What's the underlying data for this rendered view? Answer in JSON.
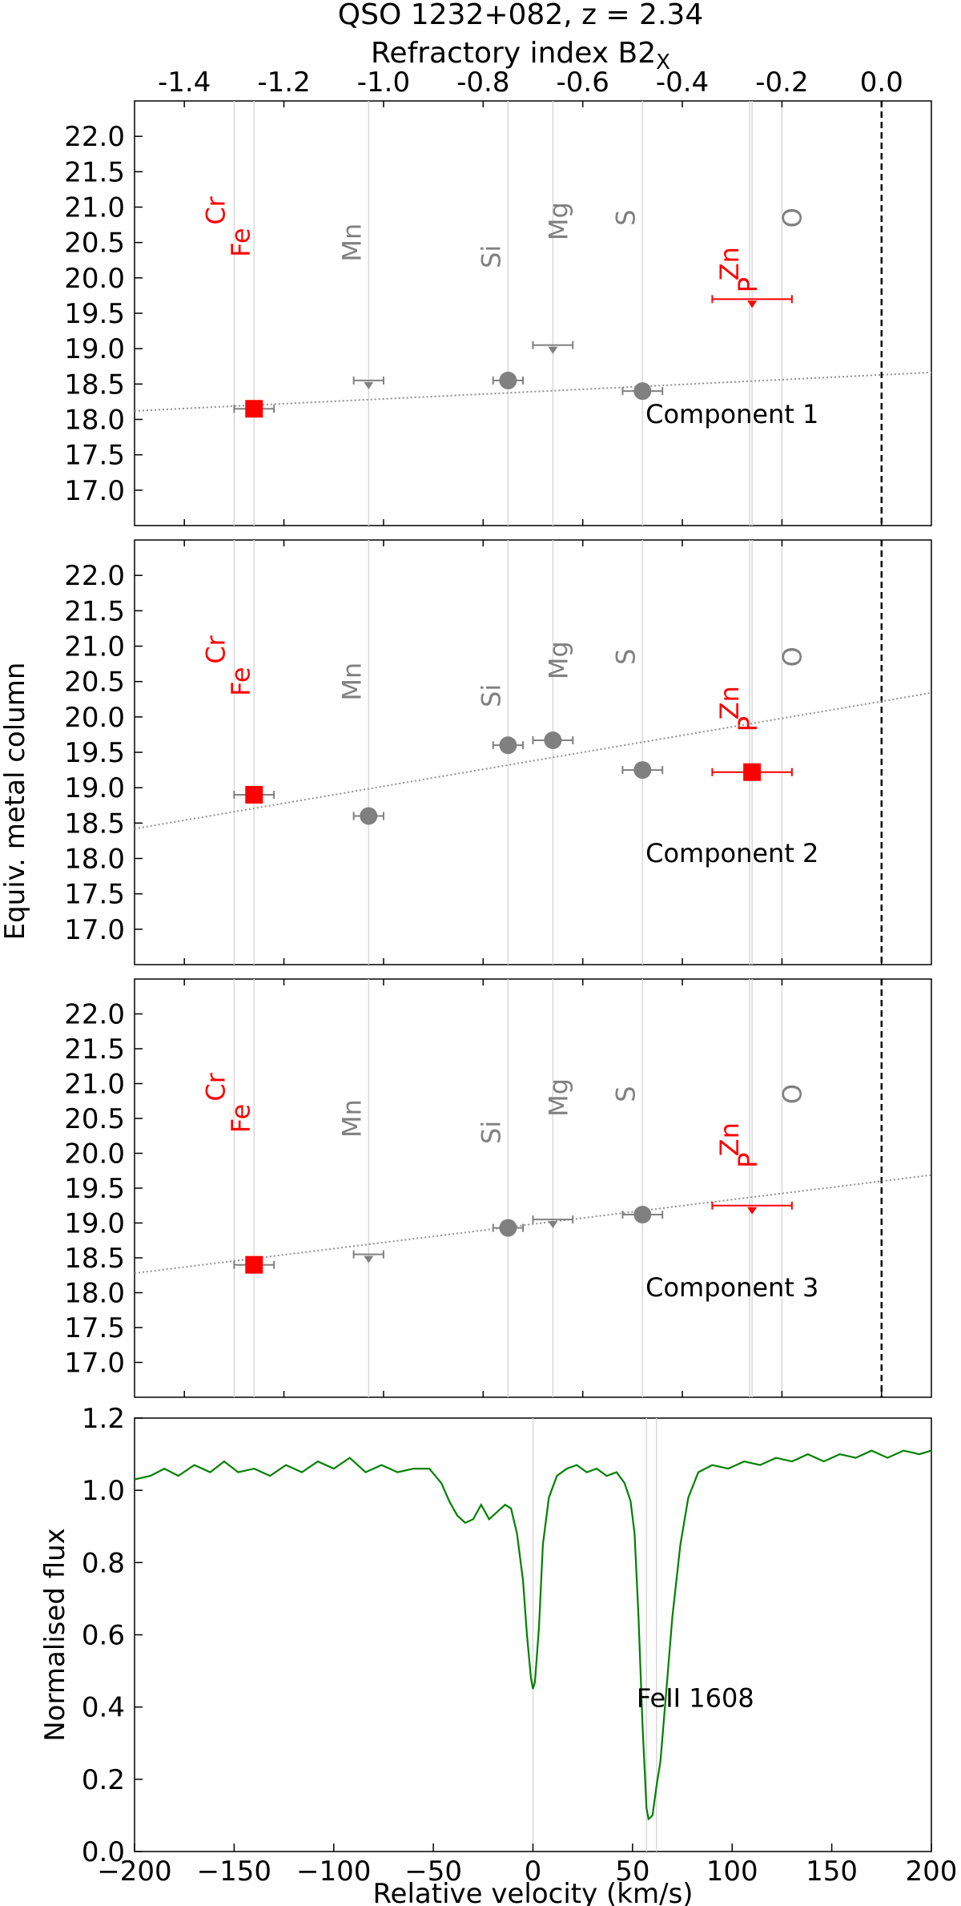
{
  "figure": {
    "title": "QSO 1232+082, z = 2.34",
    "top_axis_label": "Refractory index B2",
    "top_axis_label_sub": "X",
    "shared_ylabel": "Equiv. metal column"
  },
  "colors": {
    "refractory": "#ff0000",
    "volatile": "#808080",
    "spectrum": "#008000",
    "vline": "#d9d9d9",
    "zero_line": "#000000",
    "fit_line": "#909090"
  },
  "chart_data": [
    {
      "type": "scatter",
      "panel": "Component 1",
      "label": "Component 1",
      "xlim": [
        -1.5,
        0.1
      ],
      "ylim": [
        16.5,
        22.5
      ],
      "xticks": [
        "-1.4",
        "-1.2",
        "-1.0",
        "-0.8",
        "-0.6",
        "-0.4",
        "-0.2",
        "0.0"
      ],
      "yticks": [
        "17.0",
        "17.5",
        "18.0",
        "18.5",
        "19.0",
        "19.5",
        "20.0",
        "20.5",
        "21.0",
        "21.5",
        "22.0"
      ],
      "elements": [
        {
          "name": "Cr",
          "x": -1.3,
          "color": "red"
        },
        {
          "name": "Fe",
          "x": -1.26,
          "color": "red"
        },
        {
          "name": "Mn",
          "x": -1.03,
          "color": "gray"
        },
        {
          "name": "Si",
          "x": -0.75,
          "color": "gray"
        },
        {
          "name": "Mg",
          "x": -0.66,
          "color": "gray"
        },
        {
          "name": "S",
          "x": -0.48,
          "color": "gray"
        },
        {
          "name": "Zn",
          "x": -0.265,
          "color": "red"
        },
        {
          "name": "P",
          "x": -0.26,
          "color": "red"
        },
        {
          "name": "O",
          "x": -0.2,
          "color": "gray"
        }
      ],
      "points": [
        {
          "element": "Fe",
          "x": -1.26,
          "y": 18.15,
          "xerr": 0.04,
          "kind": "measured",
          "marker": "square"
        },
        {
          "element": "Mn",
          "x": -1.03,
          "y": 18.55,
          "xerr": 0.03,
          "kind": "upper_limit",
          "marker": "triangle"
        },
        {
          "element": "Si",
          "x": -0.75,
          "y": 18.55,
          "xerr": 0.03,
          "kind": "measured",
          "marker": "circle"
        },
        {
          "element": "Mg",
          "x": -0.66,
          "y": 19.05,
          "xerr": 0.04,
          "kind": "upper_limit",
          "marker": "triangle"
        },
        {
          "element": "S",
          "x": -0.48,
          "y": 18.4,
          "xerr": 0.04,
          "kind": "measured",
          "marker": "circle"
        },
        {
          "element": "Zn",
          "x": -0.26,
          "y": 19.7,
          "xerr": 0.08,
          "kind": "upper_limit",
          "marker": "triangle",
          "color": "red"
        }
      ],
      "fit": {
        "slope": 0.34,
        "intercept": 18.63
      }
    },
    {
      "type": "scatter",
      "panel": "Component 2",
      "label": "Component 2",
      "xlim": [
        -1.5,
        0.1
      ],
      "ylim": [
        16.5,
        22.5
      ],
      "yticks": [
        "17.0",
        "17.5",
        "18.0",
        "18.5",
        "19.0",
        "19.5",
        "20.0",
        "20.5",
        "21.0",
        "21.5",
        "22.0"
      ],
      "elements": [
        {
          "name": "Cr",
          "x": -1.3,
          "color": "red"
        },
        {
          "name": "Fe",
          "x": -1.26,
          "color": "red"
        },
        {
          "name": "Mn",
          "x": -1.03,
          "color": "gray"
        },
        {
          "name": "Si",
          "x": -0.75,
          "color": "gray"
        },
        {
          "name": "Mg",
          "x": -0.66,
          "color": "gray"
        },
        {
          "name": "S",
          "x": -0.48,
          "color": "gray"
        },
        {
          "name": "Zn",
          "x": -0.265,
          "color": "red"
        },
        {
          "name": "P",
          "x": -0.26,
          "color": "red"
        },
        {
          "name": "O",
          "x": -0.2,
          "color": "gray"
        }
      ],
      "points": [
        {
          "element": "Fe",
          "x": -1.26,
          "y": 18.9,
          "xerr": 0.04,
          "kind": "measured",
          "marker": "square"
        },
        {
          "element": "Mn",
          "x": -1.03,
          "y": 18.6,
          "xerr": 0.03,
          "kind": "measured",
          "marker": "circle"
        },
        {
          "element": "Si",
          "x": -0.75,
          "y": 19.6,
          "xerr": 0.03,
          "kind": "measured",
          "marker": "circle"
        },
        {
          "element": "Mg",
          "x": -0.66,
          "y": 19.67,
          "xerr": 0.04,
          "kind": "measured",
          "marker": "circle"
        },
        {
          "element": "S",
          "x": -0.48,
          "y": 19.25,
          "xerr": 0.04,
          "kind": "measured",
          "marker": "circle"
        },
        {
          "element": "Zn",
          "x": -0.26,
          "y": 19.22,
          "xerr": 0.08,
          "kind": "measured",
          "marker": "square",
          "color": "red"
        }
      ],
      "fit": {
        "slope": 1.2,
        "intercept": 20.22
      }
    },
    {
      "type": "scatter",
      "panel": "Component 3",
      "label": "Component 3",
      "xlim": [
        -1.5,
        0.1
      ],
      "ylim": [
        16.5,
        22.5
      ],
      "yticks": [
        "17.0",
        "17.5",
        "18.0",
        "18.5",
        "19.0",
        "19.5",
        "20.0",
        "20.5",
        "21.0",
        "21.5",
        "22.0"
      ],
      "elements": [
        {
          "name": "Cr",
          "x": -1.3,
          "color": "red"
        },
        {
          "name": "Fe",
          "x": -1.26,
          "color": "red"
        },
        {
          "name": "Mn",
          "x": -1.03,
          "color": "gray"
        },
        {
          "name": "Si",
          "x": -0.75,
          "color": "gray"
        },
        {
          "name": "Mg",
          "x": -0.66,
          "color": "gray"
        },
        {
          "name": "S",
          "x": -0.48,
          "color": "gray"
        },
        {
          "name": "Zn",
          "x": -0.265,
          "color": "red"
        },
        {
          "name": "P",
          "x": -0.26,
          "color": "red"
        },
        {
          "name": "O",
          "x": -0.2,
          "color": "gray"
        }
      ],
      "points": [
        {
          "element": "Fe",
          "x": -1.26,
          "y": 18.4,
          "xerr": 0.04,
          "kind": "measured",
          "marker": "square"
        },
        {
          "element": "Mn",
          "x": -1.03,
          "y": 18.55,
          "xerr": 0.03,
          "kind": "upper_limit",
          "marker": "triangle"
        },
        {
          "element": "Si",
          "x": -0.75,
          "y": 18.93,
          "xerr": 0.03,
          "kind": "measured",
          "marker": "circle"
        },
        {
          "element": "Mg",
          "x": -0.66,
          "y": 19.05,
          "xerr": 0.04,
          "kind": "upper_limit",
          "marker": "triangle"
        },
        {
          "element": "S",
          "x": -0.48,
          "y": 19.12,
          "xerr": 0.04,
          "kind": "measured",
          "marker": "circle"
        },
        {
          "element": "Zn",
          "x": -0.26,
          "y": 19.25,
          "xerr": 0.08,
          "kind": "upper_limit",
          "marker": "triangle",
          "color": "red"
        }
      ],
      "fit": {
        "slope": 0.88,
        "intercept": 19.6
      }
    },
    {
      "type": "line",
      "panel": "Spectrum",
      "label": "FeII 1608",
      "xlabel": "Relative velocity (km/s)",
      "ylabel": "Normalised flux",
      "xlim": [
        -200,
        200
      ],
      "ylim": [
        0.0,
        1.2
      ],
      "xticks": [
        "−200",
        "−150",
        "−100",
        "−50",
        "0",
        "50",
        "100",
        "150",
        "200"
      ],
      "yticks": [
        "0.0",
        "0.2",
        "0.4",
        "0.6",
        "0.8",
        "1.0",
        "1.2"
      ],
      "component_velocities": [
        0,
        57,
        62
      ],
      "series": [
        {
          "values": [
            [
              -200,
              1.03
            ],
            [
              -192,
              1.04
            ],
            [
              -185,
              1.06
            ],
            [
              -178,
              1.04
            ],
            [
              -170,
              1.07
            ],
            [
              -162,
              1.05
            ],
            [
              -155,
              1.08
            ],
            [
              -148,
              1.05
            ],
            [
              -140,
              1.06
            ],
            [
              -132,
              1.04
            ],
            [
              -124,
              1.07
            ],
            [
              -116,
              1.05
            ],
            [
              -108,
              1.08
            ],
            [
              -100,
              1.06
            ],
            [
              -92,
              1.09
            ],
            [
              -84,
              1.05
            ],
            [
              -76,
              1.07
            ],
            [
              -68,
              1.05
            ],
            [
              -60,
              1.06
            ],
            [
              -52,
              1.06
            ],
            [
              -46,
              1.02
            ],
            [
              -42,
              0.97
            ],
            [
              -38,
              0.93
            ],
            [
              -34,
              0.91
            ],
            [
              -30,
              0.92
            ],
            [
              -26,
              0.96
            ],
            [
              -22,
              0.92
            ],
            [
              -18,
              0.94
            ],
            [
              -14,
              0.96
            ],
            [
              -11,
              0.95
            ],
            [
              -8,
              0.88
            ],
            [
              -5,
              0.75
            ],
            [
              -3,
              0.6
            ],
            [
              -1,
              0.48
            ],
            [
              0,
              0.45
            ],
            [
              1,
              0.47
            ],
            [
              3,
              0.62
            ],
            [
              5,
              0.85
            ],
            [
              8,
              0.98
            ],
            [
              12,
              1.04
            ],
            [
              17,
              1.06
            ],
            [
              22,
              1.07
            ],
            [
              27,
              1.05
            ],
            [
              32,
              1.06
            ],
            [
              37,
              1.04
            ],
            [
              42,
              1.05
            ],
            [
              46,
              1.02
            ],
            [
              49,
              0.97
            ],
            [
              51,
              0.88
            ],
            [
              53,
              0.65
            ],
            [
              55,
              0.35
            ],
            [
              57,
              0.12
            ],
            [
              58,
              0.09
            ],
            [
              60,
              0.1
            ],
            [
              62,
              0.18
            ],
            [
              64,
              0.25
            ],
            [
              67,
              0.45
            ],
            [
              70,
              0.65
            ],
            [
              74,
              0.85
            ],
            [
              78,
              0.98
            ],
            [
              83,
              1.05
            ],
            [
              90,
              1.07
            ],
            [
              98,
              1.06
            ],
            [
              106,
              1.08
            ],
            [
              114,
              1.07
            ],
            [
              122,
              1.09
            ],
            [
              130,
              1.08
            ],
            [
              138,
              1.1
            ],
            [
              146,
              1.08
            ],
            [
              154,
              1.1
            ],
            [
              162,
              1.09
            ],
            [
              170,
              1.11
            ],
            [
              178,
              1.09
            ],
            [
              186,
              1.11
            ],
            [
              194,
              1.1
            ],
            [
              200,
              1.11
            ]
          ]
        }
      ]
    }
  ]
}
